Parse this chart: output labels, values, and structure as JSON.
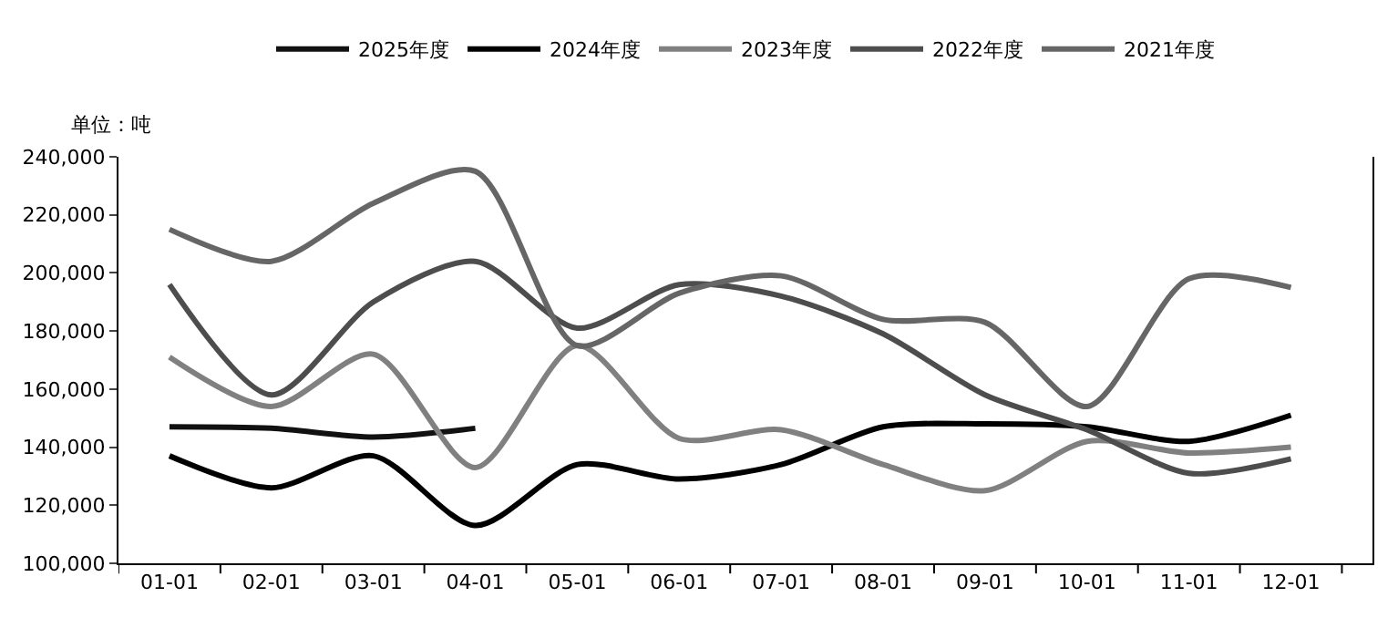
{
  "chart_data": {
    "type": "line",
    "ylabel": "单位：吨",
    "categories": [
      "01-01",
      "02-01",
      "03-01",
      "04-01",
      "05-01",
      "06-01",
      "07-01",
      "08-01",
      "09-01",
      "10-01",
      "11-01",
      "12-01"
    ],
    "series": [
      {
        "name": "2025年度",
        "color": "#111111",
        "values": [
          147000,
          146500,
          143500,
          146500,
          null,
          null,
          null,
          null,
          null,
          null,
          null,
          null
        ]
      },
      {
        "name": "2024年度",
        "color": "#000000",
        "values": [
          137000,
          126000,
          137000,
          113000,
          134000,
          129000,
          134000,
          147000,
          148000,
          147000,
          142000,
          151000
        ]
      },
      {
        "name": "2023年度",
        "color": "#808080",
        "values": [
          171000,
          154000,
          172000,
          133000,
          175000,
          143000,
          146000,
          134000,
          125000,
          142000,
          138000,
          140000
        ]
      },
      {
        "name": "2022年度",
        "color": "#4d4d4d",
        "values": [
          196000,
          158000,
          190000,
          204000,
          181000,
          196000,
          192000,
          179000,
          158000,
          146000,
          131000,
          136000
        ]
      },
      {
        "name": "2021年度",
        "color": "#666666",
        "values": [
          215000,
          204000,
          224000,
          235000,
          175000,
          193000,
          199000,
          184000,
          183000,
          154000,
          198000,
          195000
        ]
      }
    ],
    "ylim": [
      100000,
      240000
    ],
    "yticks": [
      {
        "value": 100000,
        "label": "100,000"
      },
      {
        "value": 120000,
        "label": "120,000"
      },
      {
        "value": 140000,
        "label": "140,000"
      },
      {
        "value": 160000,
        "label": "160,000"
      },
      {
        "value": 180000,
        "label": "180,000"
      },
      {
        "value": 200000,
        "label": "200,000"
      },
      {
        "value": 220000,
        "label": "220,000"
      },
      {
        "value": 240000,
        "label": "240,000"
      }
    ],
    "legend": "top",
    "marker": "none",
    "line_style": "solid"
  }
}
